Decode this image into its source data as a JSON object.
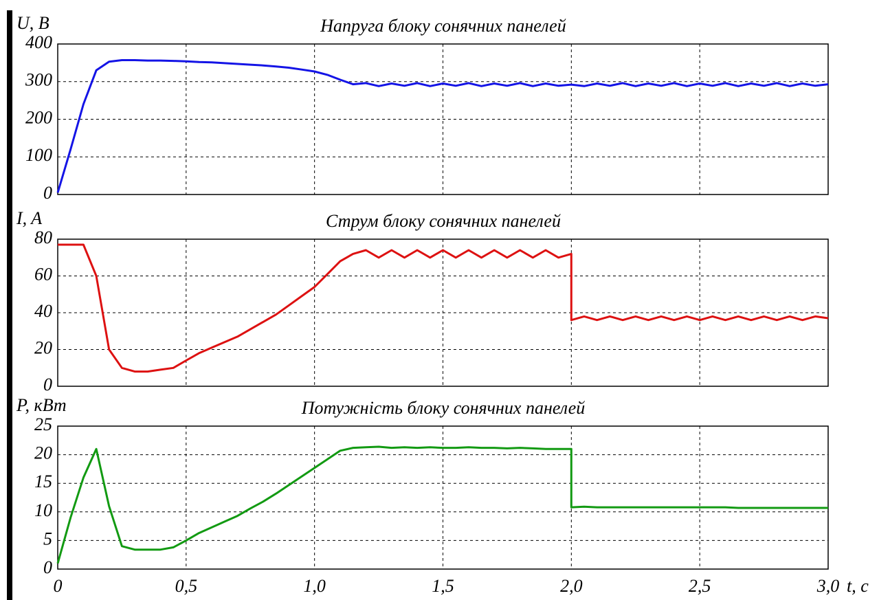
{
  "chart_data": [
    {
      "type": "line",
      "title": "Напруга блоку сонячних панелей",
      "ylabel": "U, B",
      "ylim": [
        0,
        400
      ],
      "yticks": [
        0,
        100,
        200,
        300,
        400
      ],
      "grid": true,
      "xlim": [
        0,
        3
      ],
      "x": [
        0,
        0.05,
        0.1,
        0.15,
        0.2,
        0.25,
        0.3,
        0.35,
        0.4,
        0.45,
        0.5,
        0.55,
        0.6,
        0.65,
        0.7,
        0.75,
        0.8,
        0.85,
        0.9,
        0.95,
        1,
        1.05,
        1.1,
        1.15,
        1.2,
        1.25,
        1.3,
        1.35,
        1.4,
        1.45,
        1.5,
        1.55,
        1.6,
        1.65,
        1.7,
        1.75,
        1.8,
        1.85,
        1.9,
        1.95,
        2,
        2,
        2.05,
        2.1,
        2.15,
        2.2,
        2.25,
        2.3,
        2.35,
        2.4,
        2.45,
        2.5,
        2.55,
        2.6,
        2.65,
        2.7,
        2.75,
        2.8,
        2.85,
        2.9,
        2.95,
        3
      ],
      "series": [
        {
          "color": "#1414e6",
          "values": [
            5,
            120,
            240,
            330,
            353,
            357,
            357,
            356,
            356,
            355,
            354,
            352,
            351,
            349,
            347,
            345,
            343,
            340,
            337,
            332,
            327,
            318,
            305,
            293,
            296,
            288,
            295,
            289,
            296,
            288,
            295,
            289,
            296,
            288,
            295,
            289,
            296,
            288,
            295,
            289,
            292,
            292,
            288,
            295,
            289,
            296,
            288,
            295,
            289,
            296,
            288,
            295,
            289,
            296,
            288,
            295,
            289,
            296,
            288,
            295,
            289,
            293
          ]
        }
      ]
    },
    {
      "type": "line",
      "title": "Струм блоку сонячних панелей",
      "ylabel": "I, A",
      "ylim": [
        0,
        80
      ],
      "yticks": [
        0,
        20,
        40,
        60,
        80
      ],
      "grid": true,
      "xlim": [
        0,
        3
      ],
      "x": [
        0,
        0.05,
        0.1,
        0.15,
        0.2,
        0.25,
        0.3,
        0.35,
        0.4,
        0.45,
        0.5,
        0.55,
        0.6,
        0.65,
        0.7,
        0.75,
        0.8,
        0.85,
        0.9,
        0.95,
        1,
        1.05,
        1.1,
        1.15,
        1.2,
        1.25,
        1.3,
        1.35,
        1.4,
        1.45,
        1.5,
        1.55,
        1.6,
        1.65,
        1.7,
        1.75,
        1.8,
        1.85,
        1.9,
        1.95,
        2,
        2,
        2.05,
        2.1,
        2.15,
        2.2,
        2.25,
        2.3,
        2.35,
        2.4,
        2.45,
        2.5,
        2.55,
        2.6,
        2.65,
        2.7,
        2.75,
        2.8,
        2.85,
        2.9,
        2.95,
        3
      ],
      "series": [
        {
          "color": "#dd1111",
          "values": [
            77,
            77,
            77,
            60,
            20,
            10,
            8,
            8,
            9,
            10,
            14,
            18,
            21,
            24,
            27,
            31,
            35,
            39,
            44,
            49,
            54,
            61,
            68,
            72,
            74,
            70,
            74,
            70,
            74,
            70,
            74,
            70,
            74,
            70,
            74,
            70,
            74,
            70,
            74,
            70,
            72,
            36,
            38,
            36,
            38,
            36,
            38,
            36,
            38,
            36,
            38,
            36,
            38,
            36,
            38,
            36,
            38,
            36,
            38,
            36,
            38,
            37
          ]
        }
      ]
    },
    {
      "type": "line",
      "title": "Потужність блоку сонячних панелей",
      "ylabel": "P, кВт",
      "xlabel": "t, c",
      "ylim": [
        0,
        25
      ],
      "yticks": [
        0,
        5,
        10,
        15,
        20,
        25
      ],
      "grid": true,
      "xlim": [
        0,
        3
      ],
      "xticks": [
        0,
        {
          "value": 0.5,
          "label": "0,5"
        },
        {
          "value": 1,
          "label": "1,0"
        },
        {
          "value": 1.5,
          "label": "1,5"
        },
        {
          "value": 2,
          "label": "2,0"
        },
        {
          "value": 2.5,
          "label": "2,5"
        },
        {
          "value": 3,
          "label": "3,0"
        }
      ],
      "x": [
        0,
        0.05,
        0.1,
        0.15,
        0.2,
        0.25,
        0.3,
        0.35,
        0.4,
        0.45,
        0.5,
        0.55,
        0.6,
        0.65,
        0.7,
        0.75,
        0.8,
        0.85,
        0.9,
        0.95,
        1,
        1.05,
        1.1,
        1.15,
        1.2,
        1.25,
        1.3,
        1.35,
        1.4,
        1.45,
        1.5,
        1.55,
        1.6,
        1.65,
        1.7,
        1.75,
        1.8,
        1.85,
        1.9,
        1.95,
        2,
        2,
        2.05,
        2.1,
        2.15,
        2.2,
        2.25,
        2.3,
        2.35,
        2.4,
        2.45,
        2.5,
        2.55,
        2.6,
        2.65,
        2.7,
        2.75,
        2.8,
        2.85,
        2.9,
        2.95,
        3
      ],
      "series": [
        {
          "color": "#129a12",
          "values": [
            1,
            9,
            16,
            21,
            11,
            4,
            3.4,
            3.4,
            3.4,
            3.8,
            5,
            6.3,
            7.3,
            8.3,
            9.3,
            10.6,
            11.8,
            13.2,
            14.7,
            16.2,
            17.7,
            19.2,
            20.7,
            21.2,
            21.3,
            21.4,
            21.2,
            21.3,
            21.2,
            21.3,
            21.2,
            21.2,
            21.3,
            21.2,
            21.2,
            21.1,
            21.2,
            21.1,
            21,
            21,
            21,
            10.8,
            10.9,
            10.8,
            10.8,
            10.8,
            10.8,
            10.8,
            10.8,
            10.8,
            10.8,
            10.8,
            10.8,
            10.8,
            10.7,
            10.7,
            10.7,
            10.7,
            10.7,
            10.7,
            10.7,
            10.7
          ]
        }
      ]
    }
  ]
}
